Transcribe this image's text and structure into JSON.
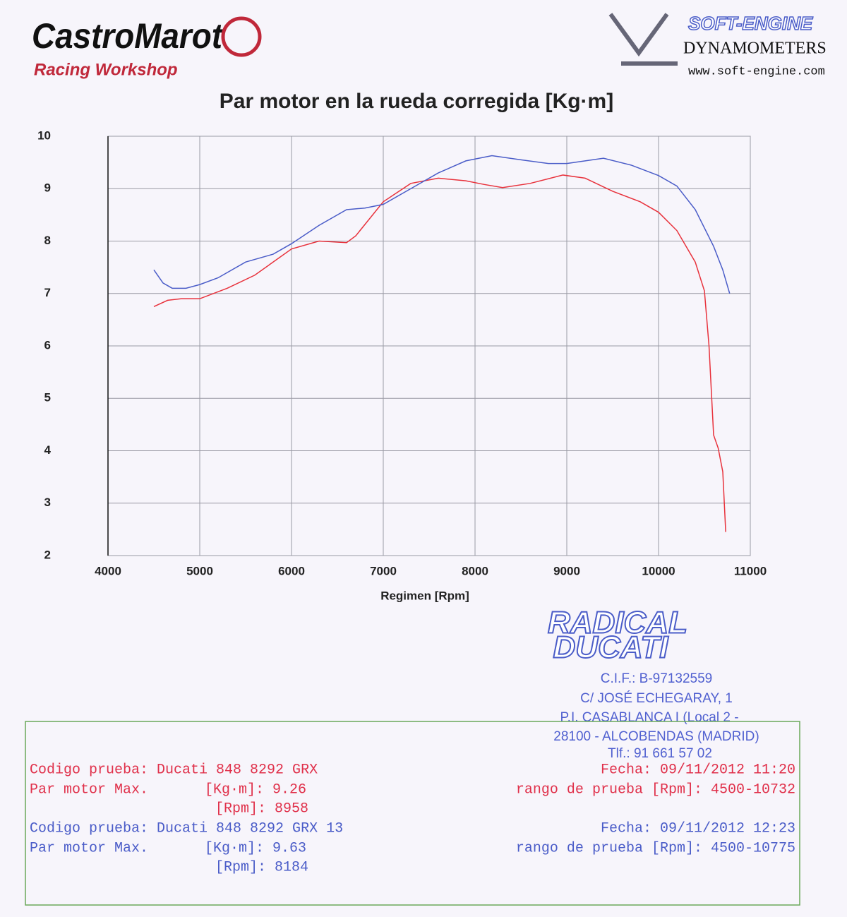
{
  "header": {
    "brand": "CastroMarot",
    "brand_sub": "Racing Workshop",
    "dyno_brand": "SOFT-ENGINE",
    "dyno_sub": "DYNAMOMETERS",
    "dyno_url": "www.soft-engine.com"
  },
  "chart_data": {
    "type": "line",
    "title": "Par motor en la rueda corregida [Kg·m]",
    "x_label": "Regimen [Rpm]",
    "xlim": [
      4000,
      11000
    ],
    "xticks": [
      4000,
      5000,
      6000,
      7000,
      8000,
      9000,
      10000,
      11000
    ],
    "ylim": [
      2,
      10
    ],
    "yticks": [
      2,
      3,
      4,
      5,
      6,
      7,
      8,
      9,
      10
    ],
    "grid": true,
    "series": [
      {
        "color": "#e8323c",
        "x": [
          4500,
          4650,
          4800,
          5000,
          5300,
          5600,
          6000,
          6300,
          6600,
          6700,
          7000,
          7300,
          7600,
          7900,
          8100,
          8300,
          8600,
          8958,
          9200,
          9500,
          9800,
          10000,
          10200,
          10400,
          10500,
          10550,
          10600,
          10650,
          10700,
          10732
        ],
        "values": [
          6.75,
          6.87,
          6.9,
          6.9,
          7.1,
          7.35,
          7.85,
          8.0,
          7.97,
          8.1,
          8.75,
          9.1,
          9.2,
          9.15,
          9.08,
          9.02,
          9.1,
          9.26,
          9.2,
          8.95,
          8.75,
          8.55,
          8.2,
          7.6,
          7.05,
          6.0,
          4.3,
          4.05,
          3.6,
          2.45
        ]
      },
      {
        "color": "#4a5cc8",
        "x": [
          4500,
          4600,
          4700,
          4850,
          5000,
          5200,
          5500,
          5800,
          6000,
          6300,
          6600,
          6800,
          7000,
          7300,
          7600,
          7900,
          8184,
          8500,
          8800,
          9000,
          9400,
          9700,
          10000,
          10200,
          10400,
          10600,
          10700,
          10775
        ],
        "values": [
          7.45,
          7.2,
          7.1,
          7.1,
          7.17,
          7.3,
          7.6,
          7.75,
          7.95,
          8.3,
          8.6,
          8.63,
          8.7,
          9.0,
          9.3,
          9.53,
          9.63,
          9.55,
          9.48,
          9.48,
          9.58,
          9.45,
          9.25,
          9.05,
          8.6,
          7.9,
          7.45,
          7.0
        ]
      }
    ]
  },
  "stamp": {
    "name_1": "RADICAL",
    "name_2": "DUCATI",
    "cif": "C.I.F.: B-97132559",
    "street": "C/ JOSÉ ECHEGARAY, 1",
    "estate": "P.I. CASABLANCA I (Local 2 -",
    "city": "28100 - ALCOBENDAS (MADRID)",
    "phone": "Tlf.: 91 661 57 02"
  },
  "info": {
    "runs": [
      {
        "code": "Codigo prueba: Ducati 848 8292 GRX",
        "date": "Fecha: 09/11/2012 11:20",
        "max_label": "Par motor Max.",
        "max_torque": "[Kg·m]: 9.26",
        "range": "rango de prueba [Rpm]: 4500-10732",
        "max_rpm": "[Rpm]: 8958"
      },
      {
        "code": "Codigo prueba: Ducati 848 8292 GRX 13",
        "date": "Fecha: 09/11/2012 12:23",
        "max_label": "Par motor Max.",
        "max_torque": "[Kg·m]: 9.63",
        "range": "rango de prueba [Rpm]: 4500-10775",
        "max_rpm": "[Rpm]: 8184"
      }
    ]
  }
}
